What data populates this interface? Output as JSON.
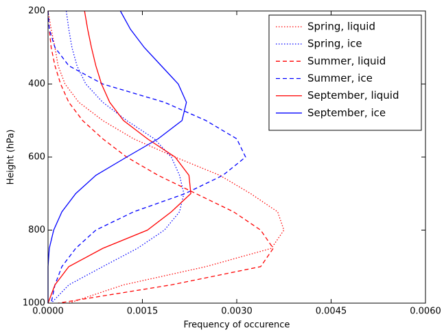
{
  "chart_data": {
    "type": "line",
    "x_label": "Frequency of occurence",
    "y_label": "Height (hPa)",
    "y": [
      200,
      250,
      300,
      350,
      400,
      450,
      500,
      550,
      600,
      650,
      700,
      750,
      800,
      850,
      900,
      950,
      1000
    ],
    "series": [
      {
        "name": "Spring, liquid",
        "color": "#ff0000",
        "style": "dotted",
        "values": [
          0,
          5e-05,
          0.00011,
          0.00016,
          0.00027,
          0.00049,
          0.00087,
          0.00136,
          0.00202,
          0.00273,
          0.00322,
          0.00365,
          0.00375,
          0.00355,
          0.00251,
          0.0012,
          0.00033
        ]
      },
      {
        "name": "Spring, ice",
        "color": "#0000ff",
        "style": "dotted",
        "values": [
          0.00029,
          0.00033,
          0.00038,
          0.00046,
          0.0006,
          0.00087,
          0.00125,
          0.00169,
          0.00196,
          0.00209,
          0.00216,
          0.00209,
          0.00185,
          0.00142,
          0.00087,
          0.00033,
          5e-05
        ]
      },
      {
        "name": "Summer, liquid",
        "color": "#ff0000",
        "style": "dashed",
        "values": [
          0,
          2e-05,
          5e-05,
          0.00011,
          0.0002,
          0.00033,
          0.00055,
          0.00087,
          0.00125,
          0.00175,
          0.00235,
          0.00295,
          0.00338,
          0.00358,
          0.00338,
          0.00196,
          0.00016
        ]
      },
      {
        "name": "Summer, ice",
        "color": "#0000ff",
        "style": "dashed",
        "values": [
          0,
          2e-05,
          0.00011,
          0.00033,
          0.00087,
          0.00185,
          0.00251,
          0.003,
          0.00314,
          0.00278,
          0.00218,
          0.00136,
          0.00076,
          0.00044,
          0.00022,
          0.00011,
          5e-05
        ]
      },
      {
        "name": "September, liquid",
        "color": "#ff0000",
        "style": "solid",
        "values": [
          0.00058,
          0.00063,
          0.00069,
          0.00076,
          0.00085,
          0.00098,
          0.0012,
          0.00158,
          0.00202,
          0.00224,
          0.00227,
          0.00196,
          0.00158,
          0.00087,
          0.00033,
          0.00011,
          0
        ]
      },
      {
        "name": "September, ice",
        "color": "#0000ff",
        "style": "solid",
        "values": [
          0.00115,
          0.00131,
          0.00153,
          0.0018,
          0.00207,
          0.0022,
          0.00213,
          0.00175,
          0.00125,
          0.00076,
          0.00044,
          0.00022,
          9e-05,
          2e-05,
          0,
          0,
          0
        ]
      }
    ],
    "xlim": [
      0,
      0.006
    ],
    "xticks": [
      {
        "value": 0,
        "label": "0.0000"
      },
      {
        "value": 0.0015,
        "label": "0.0015"
      },
      {
        "value": 0.003,
        "label": "0.0030"
      },
      {
        "value": 0.0045,
        "label": "0.0045"
      },
      {
        "value": 0.006,
        "label": "0.0060"
      }
    ],
    "ylim": [
      1000,
      200
    ],
    "yticks": [
      200,
      400,
      600,
      800,
      1000
    ],
    "legend": "upper right"
  }
}
